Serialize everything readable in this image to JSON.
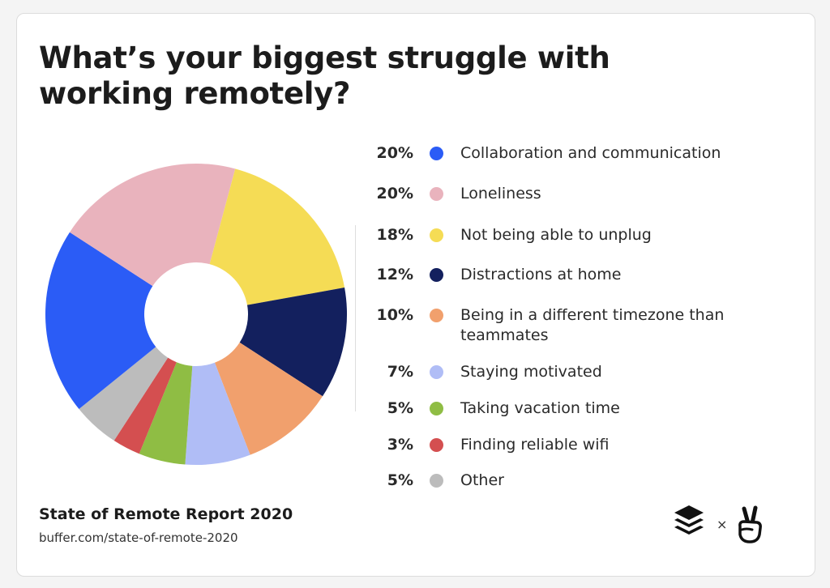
{
  "title": "What’s your biggest struggle with working remotely?",
  "source": {
    "title": "State of Remote Report 2020",
    "url": "buffer.com/state-of-remote-2020"
  },
  "logos": {
    "separator": "×",
    "left_icon": "buffer-stack-icon",
    "right_icon": "peace-hand-icon"
  },
  "chart_data": {
    "type": "pie",
    "donut": true,
    "legend_placement": "right",
    "slices": [
      {
        "label": "Collaboration and communication",
        "value": 20,
        "value_label": "20%",
        "color": "#2b5cf6"
      },
      {
        "label": "Loneliness",
        "value": 20,
        "value_label": "20%",
        "color": "#e9b3bd"
      },
      {
        "label": "Not being able to unplug",
        "value": 18,
        "value_label": "18%",
        "color": "#f5dc55"
      },
      {
        "label": "Distractions at home",
        "value": 12,
        "value_label": "12%",
        "color": "#13205e"
      },
      {
        "label": "Being in a different timezone than teammates",
        "value": 10,
        "value_label": "10%",
        "color": "#f1a06d"
      },
      {
        "label": "Staying motivated",
        "value": 7,
        "value_label": "7%",
        "color": "#b0bdf6"
      },
      {
        "label": "Taking vacation time",
        "value": 5,
        "value_label": "5%",
        "color": "#8fbd44"
      },
      {
        "label": "Finding reliable wifi",
        "value": 3,
        "value_label": "3%",
        "color": "#d44f50"
      },
      {
        "label": "Other",
        "value": 5,
        "value_label": "5%",
        "color": "#bcbcbc"
      }
    ]
  }
}
